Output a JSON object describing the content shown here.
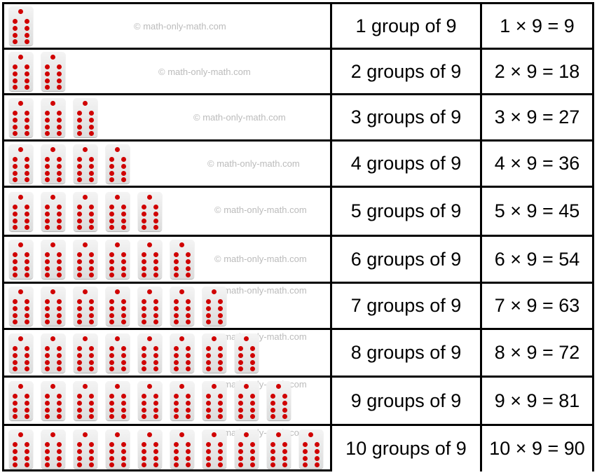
{
  "watermark": "© math-only-math.com",
  "dot_color": "#d00000",
  "rows": [
    {
      "count": 1,
      "label": "1 group of 9",
      "equation": "1 × 9 = 9"
    },
    {
      "count": 2,
      "label": "2 groups of 9",
      "equation": "2 × 9 = 18"
    },
    {
      "count": 3,
      "label": "3 groups of 9",
      "equation": "3 × 9 = 27"
    },
    {
      "count": 4,
      "label": "4 groups of 9",
      "equation": "4 × 9 = 36"
    },
    {
      "count": 5,
      "label": "5 groups of 9",
      "equation": "5 × 9 = 45"
    },
    {
      "count": 6,
      "label": "6 groups of 9",
      "equation": "6 × 9 = 54"
    },
    {
      "count": 7,
      "label": "7 groups of 9",
      "equation": "7 × 9 = 63"
    },
    {
      "count": 8,
      "label": "8 groups of 9",
      "equation": "8 × 9 = 72"
    },
    {
      "count": 9,
      "label": "9 groups of 9",
      "equation": "9 × 9 = 81"
    },
    {
      "count": 10,
      "label": "10 groups of 9",
      "equation": "10 × 9 = 90"
    }
  ]
}
